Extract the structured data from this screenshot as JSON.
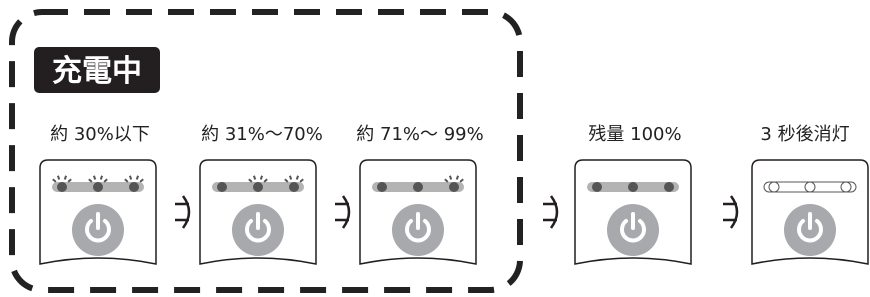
{
  "badge": "充電中",
  "stages": [
    {
      "label": "約 30%以下"
    },
    {
      "label": "約 31%〜70%"
    },
    {
      "label": "約 71%〜 99%"
    },
    {
      "label": "残量 100%"
    },
    {
      "label": "3 秒後消灯"
    }
  ]
}
